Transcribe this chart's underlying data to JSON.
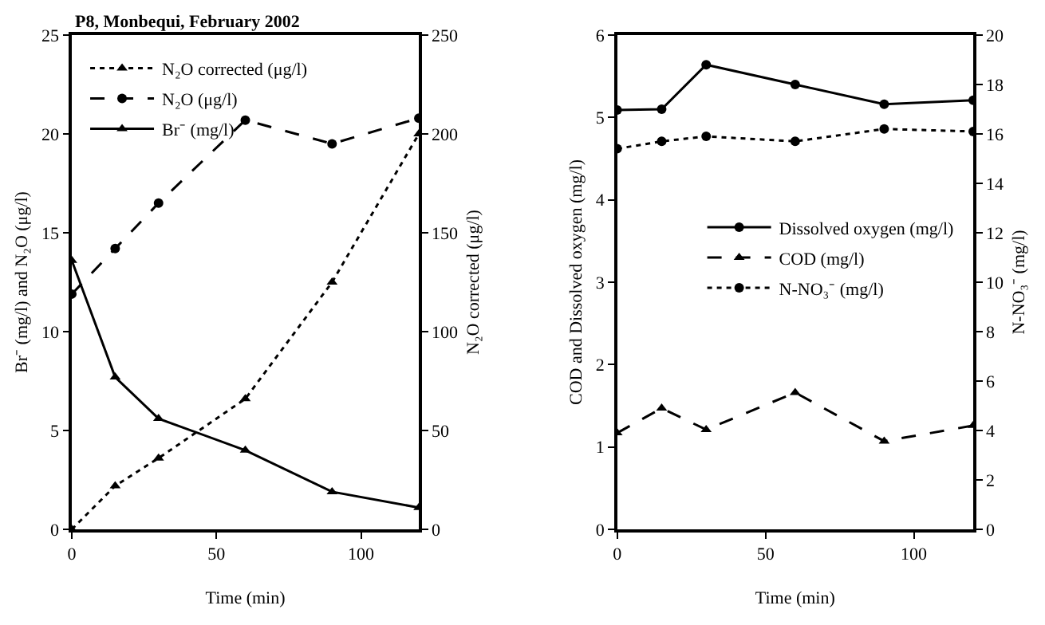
{
  "chart_data": [
    {
      "type": "line",
      "title": "P8, Monbequi, February 2002",
      "xlabel": "Time (min)",
      "ylabel": "Br⁻ (mg/l) and N₂O (μg/l)",
      "y2label": "N₂O corrected (μg/l)",
      "x": [
        0,
        15,
        30,
        60,
        90,
        120
      ],
      "series": [
        {
          "name": "N₂O corrected (μg/l)",
          "color": "#000000",
          "axis": "y2",
          "marker": "triangle",
          "line_style": "dotted",
          "values": [
            0,
            22,
            36,
            66,
            125,
            200
          ]
        },
        {
          "name": "N₂O (μg/l)",
          "color": "#000000",
          "marker": "circle",
          "line_style": "dashed",
          "values": [
            11.9,
            14.2,
            16.5,
            20.7,
            19.5,
            20.8
          ]
        },
        {
          "name": "Br⁻ (mg/l)",
          "color": "#000000",
          "marker": "triangle",
          "line_style": "solid",
          "values": [
            13.6,
            7.7,
            5.6,
            4.0,
            1.9,
            1.1
          ]
        }
      ],
      "xlim": [
        0,
        120
      ],
      "xticks": [
        0,
        50,
        100
      ],
      "ylim": [
        0,
        25
      ],
      "yticks": [
        0,
        5,
        10,
        15,
        20,
        25
      ],
      "y2lim": [
        0,
        250
      ],
      "y2ticks": [
        0,
        50,
        100,
        150,
        200,
        250
      ],
      "legend": "top left"
    },
    {
      "type": "line",
      "xlabel": "Time (min)",
      "ylabel": "COD and Dissolved oxygen (mg/l)",
      "y2label": "N-NO₃⁻ (mg/l)",
      "x": [
        0,
        15,
        30,
        60,
        90,
        120
      ],
      "series": [
        {
          "name": "Dissolved oxygen (mg/l)",
          "color": "#000000",
          "marker": "circle",
          "line_style": "solid",
          "values": [
            5.09,
            5.1,
            5.64,
            5.4,
            5.16,
            5.21
          ]
        },
        {
          "name": "COD (mg/l)",
          "color": "#000000",
          "marker": "triangle",
          "line_style": "dashed",
          "values": [
            1.17,
            1.47,
            1.21,
            1.66,
            1.07,
            1.26
          ]
        },
        {
          "name": "N-NO₃⁻ (mg/l)",
          "color": "#000000",
          "axis": "y2",
          "marker": "circle",
          "line_style": "dotted",
          "values": [
            15.4,
            15.7,
            15.9,
            15.7,
            16.2,
            16.1
          ]
        }
      ],
      "xlim": [
        0,
        120
      ],
      "xticks": [
        0,
        50,
        100
      ],
      "ylim": [
        0,
        6
      ],
      "yticks": [
        0,
        1,
        2,
        3,
        4,
        5,
        6
      ],
      "y2lim": [
        0,
        20
      ],
      "y2ticks": [
        0,
        2,
        4,
        6,
        8,
        10,
        12,
        14,
        16,
        18,
        20
      ],
      "legend": "right"
    }
  ]
}
